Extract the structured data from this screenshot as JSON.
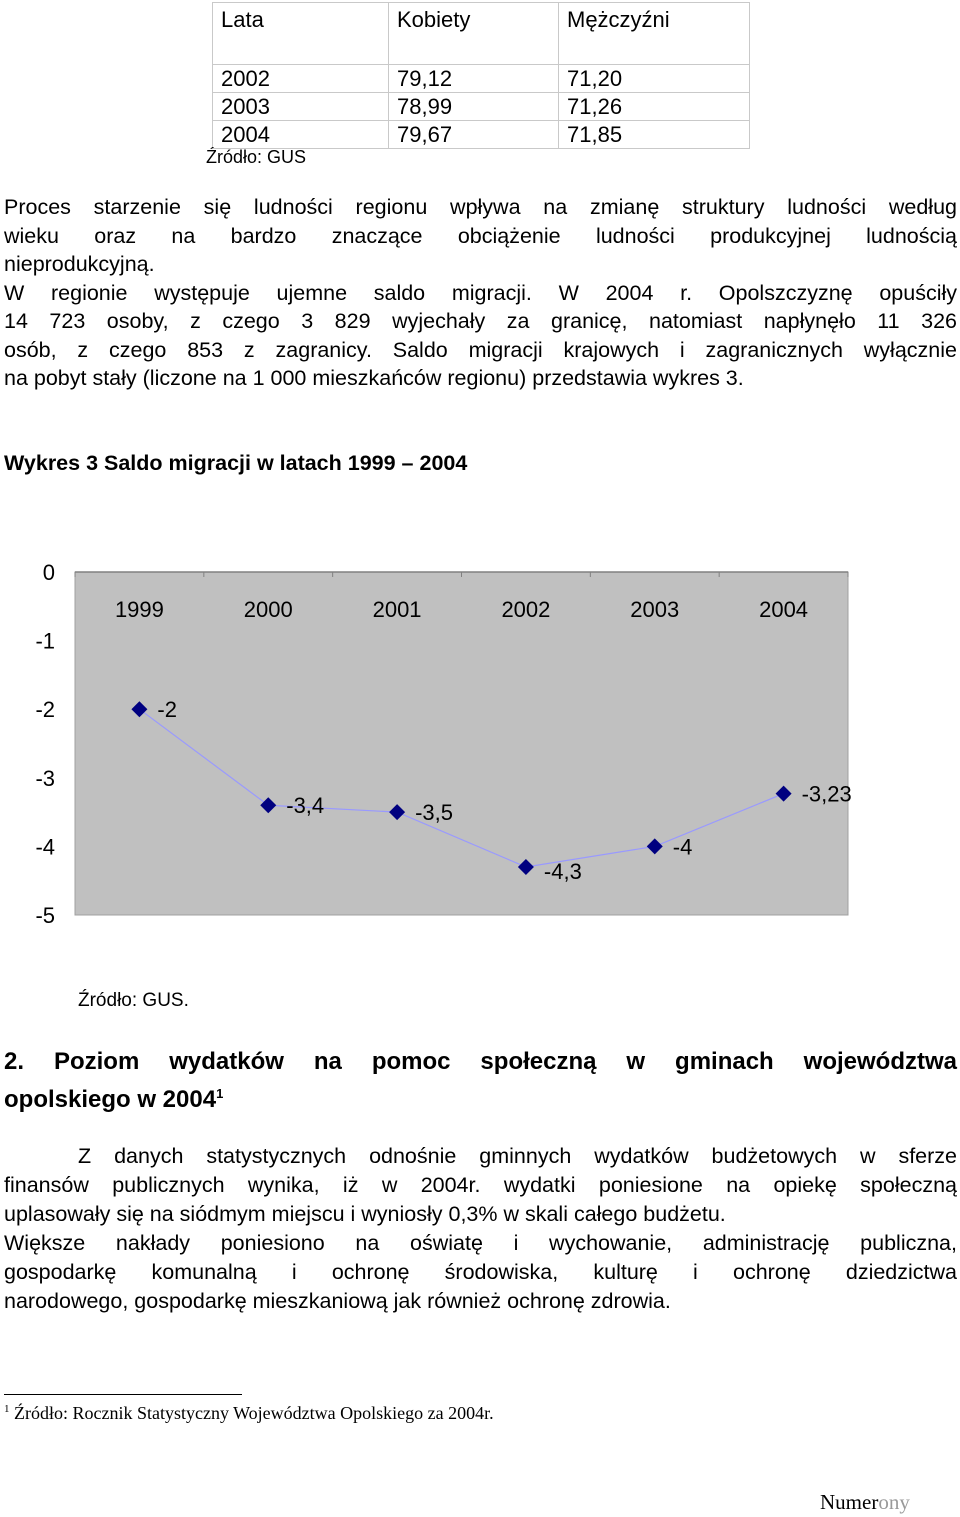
{
  "table": {
    "headers": [
      "Lata",
      "Kobiety",
      "Mężczyźni"
    ],
    "rows": [
      [
        "2002",
        "79,12",
        "71,20"
      ],
      [
        "2003",
        "78,99",
        "71,26"
      ],
      [
        "2004",
        "79,67",
        "71,85"
      ]
    ],
    "source": "Źródło: GUS"
  },
  "paragraph1": {
    "lines": [
      "Proces starzenie się ludności regionu wpływa na zmianę struktury ludności według",
      "wieku oraz na bardzo znaczące obciążenie ludności produkcyjnej ludnością",
      "nieprodukcyjną.",
      "W regionie występuje ujemne saldo migracji. W 2004 r. Opolszczyznę opuściły",
      "14 723 osoby, z czego 3 829 wyjechały za granicę, natomiast napłynęło 11 326",
      "osób, z czego 853 z zagranicy. Saldo migracji krajowych i zagranicznych wyłącznie",
      "na pobyt stały (liczone na 1 000 mieszkańców regionu) przedstawia wykres 3."
    ]
  },
  "chart_title": "Wykres 3 Saldo migracji w latach 1999 – 2004",
  "chart_data": {
    "type": "line",
    "title": "",
    "xlabel": "",
    "ylabel": "",
    "categories": [
      "1999",
      "2000",
      "2001",
      "2002",
      "2003",
      "2004"
    ],
    "series": [
      {
        "values": [
          -2,
          -3.4,
          -3.5,
          -4.3,
          -4,
          -3.23
        ]
      }
    ],
    "data_labels": [
      "-2",
      "-3,4",
      "-3,5",
      "-4,3",
      "-4",
      "-3,23"
    ],
    "y_ticks": [
      "0",
      "-1",
      "-2",
      "-3",
      "-4",
      "-5"
    ],
    "ylim": [
      -5,
      0
    ],
    "grid": false,
    "legend": "none",
    "colors": {
      "plot_background": "#c0c0c0",
      "line": "#9999ff",
      "marker": "#000080"
    }
  },
  "chart_source": "Źródło: GUS.",
  "section2": {
    "heading_line1": "2. Poziom wydatków na pomoc społeczną w gminach województwa",
    "heading_line2": "opolskiego w 2004",
    "heading_sup": "1",
    "lines": [
      "Z danych statystycznych odnośnie gminnych wydatków budżetowych w sferze",
      "finansów publicznych wynika, iż w 2004r. wydatki poniesione na opiekę społeczną",
      "uplasowały się na siódmym miejscu i wyniosły 0,3% w skali całego budżetu.",
      "Większe nakłady poniesiono na oświatę i wychowanie, administrację publiczna,",
      "gospodarkę komunalną i ochronę środowiska, kulturę i ochronę dziedzictwa",
      "narodowego, gospodarkę mieszkaniową jak również ochronę zdrowia."
    ]
  },
  "footnote": {
    "sup": "1",
    "text": " Źródło: Rocznik Statystyczny Województwa Opolskiego za 2004r."
  },
  "page_number": {
    "visible": "Numer",
    "faded": "ony"
  }
}
